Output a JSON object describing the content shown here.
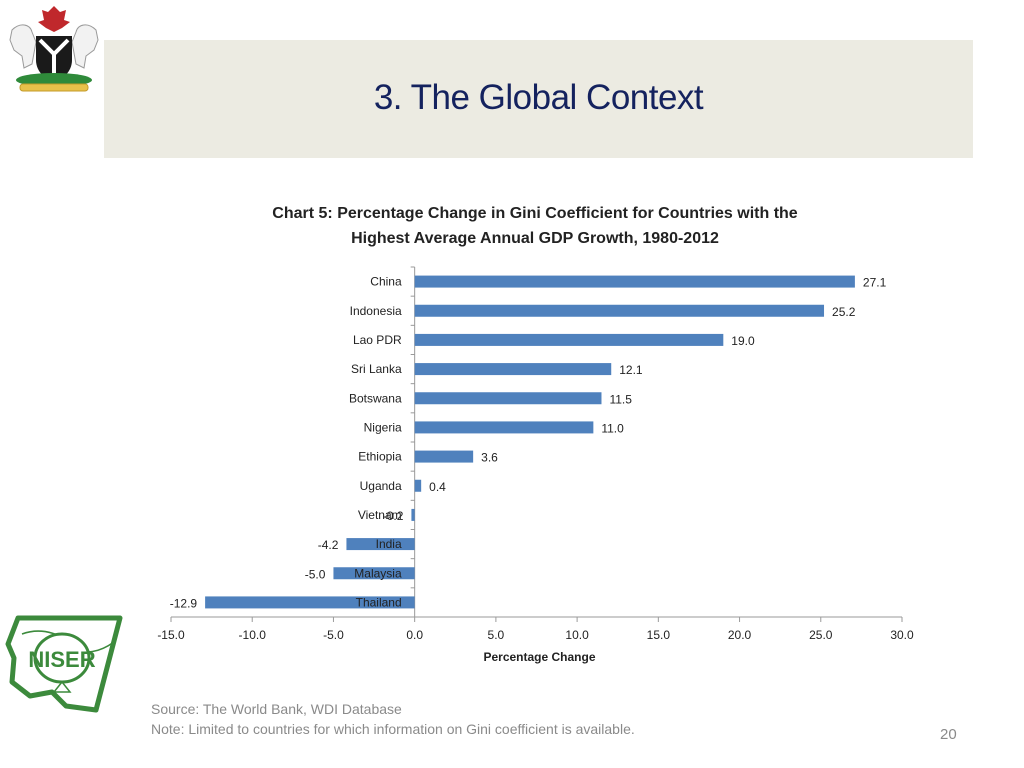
{
  "slide": {
    "title": "3. The Global Context",
    "page_number": "20",
    "source_text": "Source: The World Bank, WDI Database",
    "note_text": "Note: Limited to countries for which information on Gini coefficient is available.",
    "logos": {
      "top_left": "nigeria-coat-of-arms",
      "bottom_left": "niser-logo",
      "niser_text": "NISER"
    }
  },
  "chart_data": {
    "type": "bar",
    "orientation": "horizontal",
    "title_lines": [
      "Chart 5: Percentage Change in Gini Coefficient for Countries with the",
      "Highest Average Annual GDP Growth, 1980-2012"
    ],
    "title": "Chart 5: Percentage Change in Gini Coefficient for Countries with the Highest Average Annual GDP Growth, 1980-2012",
    "categories": [
      "China",
      "Indonesia",
      "Lao PDR",
      "Sri Lanka",
      "Botswana",
      "Nigeria",
      "Ethiopia",
      "Uganda",
      "Vietnam",
      "India",
      "Malaysia",
      "Thailand"
    ],
    "values": [
      27.1,
      25.2,
      19.0,
      12.1,
      11.5,
      11.0,
      3.6,
      0.4,
      -0.2,
      -4.2,
      -5.0,
      -12.9
    ],
    "data_labels": [
      "27.1",
      "25.2",
      "19.0",
      "12.1",
      "11.5",
      "11.0",
      "3.6",
      "0.4",
      "-0.2",
      "-4.2",
      "-5.0",
      "-12.9"
    ],
    "xlabel": "Percentage Change",
    "ylabel": "",
    "xlim": [
      -15,
      30
    ],
    "x_ticks": [
      -15,
      -10,
      -5,
      0,
      5,
      10,
      15,
      20,
      25,
      30
    ],
    "x_tick_labels": [
      "-15.0",
      "-10.0",
      "-5.0",
      "0.0",
      "5.0",
      "10.0",
      "15.0",
      "20.0",
      "25.0",
      "30.0"
    ],
    "grid": false,
    "legend": "none",
    "bar_color": "#4f81bd"
  }
}
